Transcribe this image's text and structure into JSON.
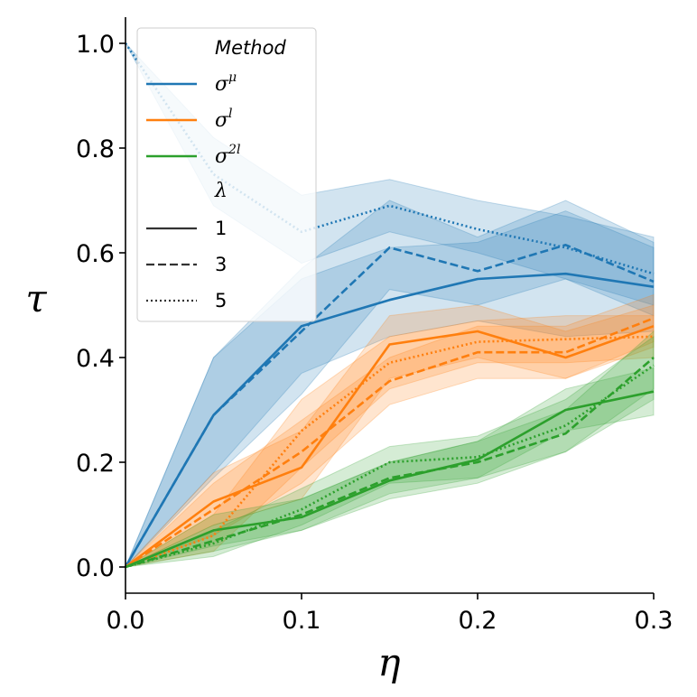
{
  "chart_data": {
    "type": "line",
    "xlabel": "η",
    "ylabel": "τ",
    "xlim": [
      0.0,
      0.3
    ],
    "ylim": [
      -0.05,
      1.05
    ],
    "xticks": [
      "0.0",
      "0.1",
      "0.2",
      "0.3"
    ],
    "yticks": [
      "0.0",
      "0.2",
      "0.4",
      "0.6",
      "0.8",
      "1.0"
    ],
    "grid": false,
    "legend_position": "top-left",
    "legend": {
      "method_title": "Method",
      "methods": [
        {
          "base": "σ",
          "sup": "μ",
          "color": "#1f77b4"
        },
        {
          "base": "σ",
          "sup": "l",
          "color": "#ff7f0e"
        },
        {
          "base": "σ",
          "sup": "2l",
          "color": "#2ca02c"
        }
      ],
      "lambda_title": "λ",
      "lambdas": [
        {
          "label": "1",
          "dash": "solid"
        },
        {
          "label": "3",
          "dash": "dashed"
        },
        {
          "label": "5",
          "dash": "dotted"
        }
      ]
    },
    "x": [
      0.0,
      0.05,
      0.1,
      0.15,
      0.2,
      0.25,
      0.3
    ],
    "series": [
      {
        "method": "σ^μ",
        "lambda": "1",
        "color": "#1f77b4",
        "dash": "solid",
        "values": [
          0.0,
          0.29,
          0.46,
          0.51,
          0.55,
          0.56,
          0.535
        ],
        "lower": [
          0.0,
          0.18,
          0.37,
          0.44,
          0.47,
          0.44,
          0.45
        ],
        "upper": [
          0.0,
          0.4,
          0.55,
          0.61,
          0.62,
          0.68,
          0.61
        ]
      },
      {
        "method": "σ^μ",
        "lambda": "3",
        "color": "#1f77b4",
        "dash": "dashed",
        "values": [
          0.0,
          0.29,
          0.45,
          0.61,
          0.565,
          0.615,
          0.545
        ],
        "lower": [
          0.0,
          0.17,
          0.33,
          0.53,
          0.5,
          0.55,
          0.48
        ],
        "upper": [
          0.0,
          0.4,
          0.57,
          0.7,
          0.63,
          0.7,
          0.62
        ]
      },
      {
        "method": "σ^μ",
        "lambda": "5",
        "color": "#1f77b4",
        "dash": "dotted",
        "values": [
          1.0,
          0.75,
          0.64,
          0.69,
          0.645,
          0.61,
          0.56
        ],
        "lower": [
          1.0,
          0.69,
          0.58,
          0.64,
          0.6,
          0.55,
          0.5
        ],
        "upper": [
          1.0,
          0.82,
          0.71,
          0.74,
          0.7,
          0.67,
          0.63
        ]
      },
      {
        "method": "σ^l",
        "lambda": "1",
        "color": "#ff7f0e",
        "dash": "solid",
        "values": [
          0.0,
          0.125,
          0.19,
          0.425,
          0.45,
          0.4,
          0.46
        ],
        "lower": [
          0.0,
          0.08,
          0.13,
          0.36,
          0.4,
          0.36,
          0.42
        ],
        "upper": [
          0.0,
          0.18,
          0.26,
          0.48,
          0.5,
          0.45,
          0.5
        ]
      },
      {
        "method": "σ^l",
        "lambda": "3",
        "color": "#ff7f0e",
        "dash": "dashed",
        "values": [
          0.0,
          0.11,
          0.22,
          0.355,
          0.41,
          0.41,
          0.475
        ],
        "lower": [
          0.0,
          0.06,
          0.16,
          0.31,
          0.36,
          0.36,
          0.43
        ],
        "upper": [
          0.0,
          0.16,
          0.28,
          0.4,
          0.46,
          0.46,
          0.52
        ]
      },
      {
        "method": "σ^l",
        "lambda": "5",
        "color": "#ff7f0e",
        "dash": "dotted",
        "values": [
          0.0,
          0.06,
          0.26,
          0.39,
          0.43,
          0.435,
          0.44
        ],
        "lower": [
          0.0,
          0.03,
          0.19,
          0.34,
          0.39,
          0.39,
          0.4
        ],
        "upper": [
          0.0,
          0.1,
          0.32,
          0.44,
          0.47,
          0.48,
          0.48
        ]
      },
      {
        "method": "σ^2l",
        "lambda": "1",
        "color": "#2ca02c",
        "dash": "solid",
        "values": [
          0.0,
          0.07,
          0.095,
          0.165,
          0.205,
          0.3,
          0.335
        ],
        "lower": [
          0.0,
          0.04,
          0.07,
          0.14,
          0.17,
          0.26,
          0.29
        ],
        "upper": [
          0.0,
          0.1,
          0.13,
          0.2,
          0.24,
          0.34,
          0.38
        ]
      },
      {
        "method": "σ^2l",
        "lambda": "3",
        "color": "#2ca02c",
        "dash": "dashed",
        "values": [
          0.0,
          0.05,
          0.1,
          0.17,
          0.2,
          0.255,
          0.4
        ],
        "lower": [
          0.0,
          0.03,
          0.07,
          0.13,
          0.16,
          0.22,
          0.34
        ],
        "upper": [
          0.0,
          0.08,
          0.13,
          0.2,
          0.24,
          0.3,
          0.45
        ]
      },
      {
        "method": "σ^2l",
        "lambda": "5",
        "color": "#2ca02c",
        "dash": "dotted",
        "values": [
          0.0,
          0.045,
          0.11,
          0.2,
          0.21,
          0.27,
          0.385
        ],
        "lower": [
          0.0,
          0.02,
          0.08,
          0.16,
          0.17,
          0.22,
          0.32
        ],
        "upper": [
          0.0,
          0.07,
          0.15,
          0.23,
          0.25,
          0.32,
          0.44
        ]
      }
    ]
  }
}
